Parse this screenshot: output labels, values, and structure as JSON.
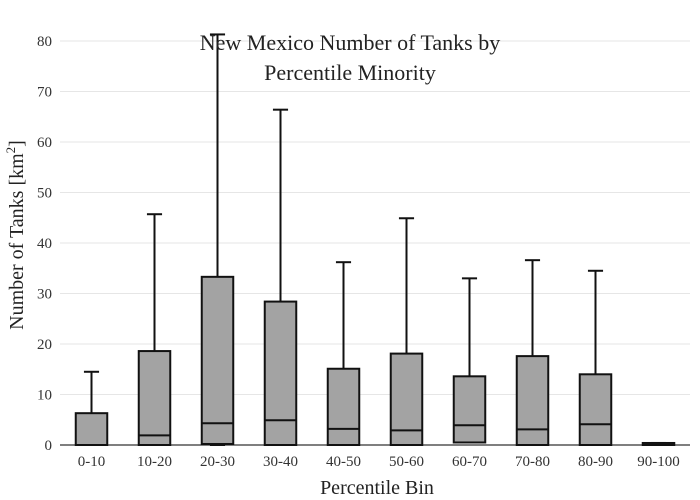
{
  "chart_data": {
    "type": "box",
    "title_lines": [
      "New Mexico Number of Tanks by",
      "Percentile Minority"
    ],
    "xlabel": "Percentile Bin",
    "ylabel_main": "Number of Tanks  [km",
    "ylabel_sup": "2",
    "ylabel_close": "]",
    "ylim": [
      0,
      80
    ],
    "yticks": [
      0,
      10,
      20,
      30,
      40,
      50,
      60,
      70,
      80
    ],
    "grid": true,
    "categories": [
      "0-10",
      "10-20",
      "20-30",
      "30-40",
      "40-50",
      "50-60",
      "60-70",
      "70-80",
      "80-90",
      "90-100"
    ],
    "boxes": [
      {
        "min": 0,
        "q1": 0,
        "median": 0,
        "q3": 6.3,
        "max": 14.5
      },
      {
        "min": 0,
        "q1": 0,
        "median": 1.9,
        "q3": 18.6,
        "max": 45.7
      },
      {
        "min": 0,
        "q1": 0.2,
        "median": 4.3,
        "q3": 33.3,
        "max": 81.3
      },
      {
        "min": 0,
        "q1": 0,
        "median": 4.9,
        "q3": 28.4,
        "max": 66.4
      },
      {
        "min": 0,
        "q1": 0,
        "median": 3.2,
        "q3": 15.1,
        "max": 36.2
      },
      {
        "min": 0,
        "q1": 0,
        "median": 2.9,
        "q3": 18.1,
        "max": 44.9
      },
      {
        "min": 0.5,
        "q1": 0.5,
        "median": 3.9,
        "q3": 13.6,
        "max": 33.0
      },
      {
        "min": 0,
        "q1": 0,
        "median": 3.1,
        "q3": 17.6,
        "max": 36.6
      },
      {
        "min": 0,
        "q1": 0,
        "median": 4.1,
        "q3": 14.0,
        "max": 34.5
      },
      {
        "min": 0,
        "q1": 0,
        "median": 0,
        "q3": 0.4,
        "max": 0.4
      }
    ],
    "box_color": "#a3a3a3",
    "line_color": "#111111"
  }
}
